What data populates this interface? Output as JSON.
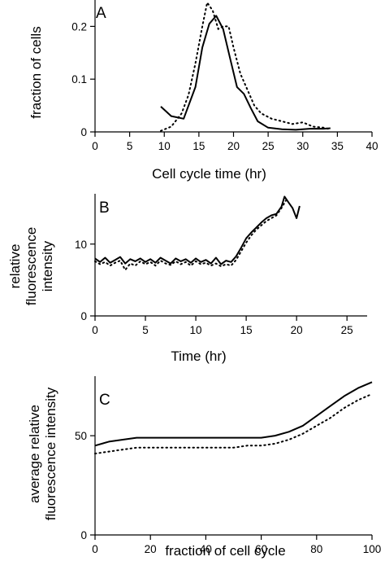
{
  "chart_data": [
    {
      "id": "A",
      "type": "line",
      "panel_label": "A",
      "xlabel": "Cell cycle time (hr)",
      "ylabel": [
        "fraction of cells"
      ],
      "xlim": [
        0,
        40
      ],
      "ylim": [
        0,
        0.25
      ],
      "xticks": [
        0,
        5,
        10,
        15,
        20,
        25,
        30,
        35,
        40
      ],
      "yticks": [
        0,
        0.1,
        0.2
      ],
      "ytick_labels": [
        "0",
        "0.1",
        "0.2"
      ],
      "grid": false,
      "series": [
        {
          "style": "solid",
          "x": [
            9.5,
            11,
            12.8,
            14.5,
            15.5,
            16.5,
            17.5,
            18.5,
            19.5,
            20.5,
            21.5,
            22.5,
            23.5,
            25,
            27,
            29,
            31,
            33,
            34
          ],
          "y": [
            0.048,
            0.03,
            0.025,
            0.085,
            0.16,
            0.205,
            0.22,
            0.195,
            0.14,
            0.085,
            0.072,
            0.045,
            0.02,
            0.008,
            0.005,
            0.004,
            0.006,
            0.006,
            0.007
          ]
        },
        {
          "style": "dotted",
          "x": [
            9.5,
            11,
            12.5,
            13.5,
            14.5,
            15.5,
            16.2,
            17,
            17.8,
            18.5,
            19.3,
            20,
            21,
            22,
            23,
            24,
            25.5,
            27,
            28.5,
            30,
            31.5,
            33,
            34
          ],
          "y": [
            0.002,
            0.01,
            0.035,
            0.07,
            0.13,
            0.2,
            0.245,
            0.23,
            0.195,
            0.2,
            0.2,
            0.16,
            0.11,
            0.08,
            0.05,
            0.035,
            0.025,
            0.02,
            0.015,
            0.018,
            0.01,
            0.008,
            0.005
          ]
        }
      ]
    },
    {
      "id": "B",
      "type": "line",
      "panel_label": "B",
      "xlabel": "Time (hr)",
      "ylabel": [
        "relative",
        "fluorescence",
        "intensity"
      ],
      "xlim": [
        0,
        27
      ],
      "ylim": [
        0,
        17
      ],
      "xticks": [
        0,
        5,
        10,
        15,
        20,
        25
      ],
      "yticks": [
        0,
        10
      ],
      "ytick_labels": [
        "0",
        "10"
      ],
      "grid": false,
      "series": [
        {
          "style": "solid",
          "x": [
            0,
            0.5,
            1,
            1.5,
            2,
            2.5,
            3,
            3.5,
            4,
            4.5,
            5,
            5.5,
            6,
            6.5,
            7,
            7.5,
            8,
            8.5,
            9,
            9.5,
            10,
            10.5,
            11,
            11.5,
            12,
            12.5,
            13,
            13.5,
            14,
            14.5,
            15,
            15.5,
            16,
            16.5,
            17,
            17.5,
            18,
            18.5,
            18.8,
            19.2,
            19.6,
            20,
            20.3
          ],
          "y": [
            8.0,
            7.5,
            8.1,
            7.4,
            7.8,
            8.2,
            7.3,
            7.9,
            7.6,
            8.0,
            7.5,
            7.9,
            7.4,
            8.1,
            7.7,
            7.3,
            8.0,
            7.6,
            7.9,
            7.4,
            8.0,
            7.5,
            7.8,
            7.3,
            8.1,
            7.2,
            7.7,
            7.5,
            8.3,
            9.5,
            10.8,
            11.6,
            12.3,
            13.0,
            13.6,
            14.0,
            14.2,
            15.2,
            16.6,
            15.8,
            15.0,
            13.6,
            15.3
          ]
        },
        {
          "style": "dotted",
          "x": [
            0,
            0.5,
            1,
            1.5,
            2,
            2.5,
            3,
            3.5,
            4,
            4.5,
            5,
            5.5,
            6,
            6.5,
            7,
            7.5,
            8,
            8.5,
            9,
            9.5,
            10,
            10.5,
            11,
            11.5,
            12,
            12.5,
            13,
            13.5,
            14,
            14.5,
            15,
            15.5,
            16,
            16.5,
            17,
            17.5,
            18,
            18.5,
            19
          ],
          "y": [
            7.6,
            7.2,
            7.5,
            7.0,
            7.4,
            7.7,
            6.4,
            7.3,
            7.0,
            7.6,
            7.2,
            7.5,
            7.0,
            7.7,
            7.3,
            7.1,
            7.6,
            7.2,
            7.5,
            7.0,
            7.6,
            7.2,
            7.4,
            7.0,
            7.3,
            6.9,
            7.2,
            7.0,
            7.8,
            9.0,
            10.2,
            11.2,
            12.0,
            12.6,
            13.2,
            13.6,
            14.0,
            15.0,
            16.2
          ]
        }
      ]
    },
    {
      "id": "C",
      "type": "line",
      "panel_label": "C",
      "xlabel": "fraction of cell cycle",
      "ylabel": [
        "average relative",
        "fluorescence intensity"
      ],
      "xlim": [
        0,
        100
      ],
      "ylim": [
        0,
        80
      ],
      "xticks": [
        0,
        20,
        40,
        60,
        80,
        100
      ],
      "yticks": [
        0,
        50
      ],
      "ytick_labels": [
        "0",
        "50"
      ],
      "grid": false,
      "series": [
        {
          "style": "solid",
          "x": [
            0,
            5,
            10,
            15,
            20,
            25,
            30,
            35,
            40,
            45,
            50,
            55,
            60,
            65,
            70,
            75,
            80,
            85,
            90,
            95,
            100
          ],
          "y": [
            45,
            47,
            48,
            49,
            49,
            49,
            49,
            49,
            49,
            49,
            49,
            49,
            49,
            50,
            52,
            55,
            60,
            65,
            70,
            74,
            77
          ]
        },
        {
          "style": "dotted",
          "x": [
            0,
            5,
            10,
            15,
            20,
            25,
            30,
            35,
            40,
            45,
            50,
            55,
            60,
            65,
            70,
            75,
            80,
            85,
            90,
            95,
            100
          ],
          "y": [
            41,
            42,
            43,
            44,
            44,
            44,
            44,
            44,
            44,
            44,
            44,
            45,
            45,
            46,
            48,
            51,
            55,
            59,
            64,
            68,
            71
          ]
        }
      ]
    }
  ]
}
